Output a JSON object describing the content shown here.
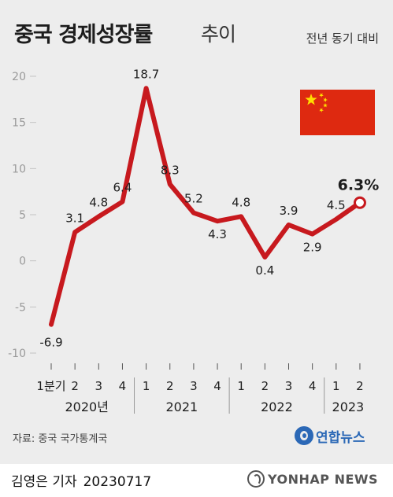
{
  "header": {
    "title": "중국 경제성장률",
    "title_suffix": "추이",
    "subtitle": "전년 동기 대비"
  },
  "flag": {
    "name": "china-flag",
    "colors": {
      "field": "#de2910",
      "stars": "#ffde00"
    }
  },
  "colors": {
    "line": "#c7191e",
    "text": "#1d1d1d",
    "axis_tick": "#9a9a9a",
    "background": "#ededed"
  },
  "chart_data": {
    "type": "line",
    "title": "중국 경제성장률 추이",
    "ylabel": "",
    "xlabel": "",
    "ylim": [
      -10,
      20
    ],
    "yticks": [
      -10,
      -5,
      0,
      5,
      10,
      15,
      20
    ],
    "ytick_labels": [
      "-10",
      "-5",
      "0",
      "5",
      "10",
      "15",
      "20"
    ],
    "grid": false,
    "categories": [
      "1분기",
      "2",
      "3",
      "4",
      "1",
      "2",
      "3",
      "4",
      "1",
      "2",
      "3",
      "4",
      "1",
      "2"
    ],
    "years": [
      {
        "label": "2020년",
        "start": 0
      },
      {
        "label": "2021",
        "start": 4
      },
      {
        "label": "2022",
        "start": 8
      },
      {
        "label": "2023",
        "start": 12
      }
    ],
    "series": [
      {
        "values": [
          -6.9,
          3.1,
          4.8,
          6.4,
          18.7,
          8.3,
          5.2,
          4.3,
          4.8,
          0.4,
          3.9,
          2.9,
          4.5,
          6.3
        ],
        "data_labels": [
          "-6.9",
          "3.1",
          "4.8",
          "6.4",
          "18.7",
          "8.3",
          "5.2",
          "4.3",
          "4.8",
          "0.4",
          "3.9",
          "2.9",
          "4.5",
          "6.3%"
        ],
        "highlight_last": true
      }
    ]
  },
  "footer": {
    "source": "자료: 중국 국가통계국",
    "agency": "연합뉴스",
    "credit": "김영은 기자",
    "credit_date": "20230717",
    "wire": "YONHAP NEWS"
  }
}
